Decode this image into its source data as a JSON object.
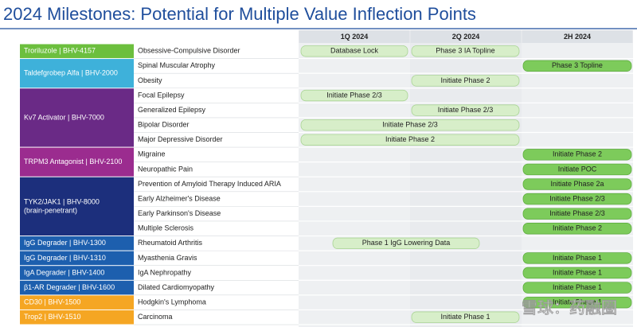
{
  "title": "2024 Milestones: Potential for Multiple Value Inflection Points",
  "columns": [
    "1Q 2024",
    "2Q 2024",
    "2H 2024"
  ],
  "programs": [
    {
      "name": [
        "Troriluzole | BHV-4157"
      ],
      "color": "#6cbf3e",
      "rows": [
        {
          "indication": "Obsessive-Compulsive Disorder",
          "milestones": [
            "Database Lock",
            "Phase 3 IA Topline"
          ]
        }
      ]
    },
    {
      "name": [
        "Taldefgrobep Alfa | BHV-2000"
      ],
      "color": "#3eb1da",
      "rows": [
        {
          "indication": "Spinal Muscular Atrophy",
          "milestones": [
            "Phase 3 Topline"
          ]
        },
        {
          "indication": "Obesity",
          "milestones": [
            "Initiate Phase 2"
          ]
        }
      ]
    },
    {
      "name": [
        "Kv7 Activator | BHV-7000"
      ],
      "color": "#6a2a86",
      "rows": [
        {
          "indication": "Focal Epilepsy",
          "milestones": [
            "Initiate Phase 2/3"
          ]
        },
        {
          "indication": "Generalized Epilepsy",
          "milestones": [
            "Initiate Phase 2/3"
          ]
        },
        {
          "indication": "Bipolar Disorder",
          "milestones": [
            "Initiate Phase 2/3"
          ]
        },
        {
          "indication": "Major Depressive Disorder",
          "milestones": [
            "Initiate Phase 2"
          ]
        }
      ]
    },
    {
      "name": [
        "TRPM3 Antagonist | BHV-2100"
      ],
      "color": "#9b2c8f",
      "rows": [
        {
          "indication": "Migraine",
          "milestones": [
            "Initiate Phase 2"
          ]
        },
        {
          "indication": "Neuropathic Pain",
          "milestones": [
            "Initiate POC"
          ]
        }
      ]
    },
    {
      "name": [
        "TYK2/JAK1 | BHV-8000",
        "(brain-penetrant)"
      ],
      "color": "#1c2f7c",
      "rows": [
        {
          "indication": "Prevention of Amyloid Therapy Induced ARIA",
          "milestones": [
            "Initiate Phase 2a"
          ]
        },
        {
          "indication": "Early Alzheimer's Disease",
          "milestones": [
            "Initiate Phase 2/3"
          ]
        },
        {
          "indication": "Early Parkinson's Disease",
          "milestones": [
            "Initiate Phase 2/3"
          ]
        },
        {
          "indication": "Multiple Sclerosis",
          "milestones": [
            "Initiate Phase 2"
          ]
        }
      ]
    },
    {
      "name": [
        "IgG Degrader | BHV-1300"
      ],
      "color": "#1d5fae",
      "rows": [
        {
          "indication": "Rheumatoid Arthritis",
          "milestones": [
            "Phase 1 IgG Lowering Data"
          ]
        }
      ]
    },
    {
      "name": [
        "IgG Degrader | BHV-1310"
      ],
      "color": "#1d5fae",
      "rows": [
        {
          "indication": "Myasthenia Gravis",
          "milestones": [
            "Initiate Phase 1"
          ]
        }
      ]
    },
    {
      "name": [
        "IgA Degrader | BHV-1400"
      ],
      "color": "#1d5fae",
      "rows": [
        {
          "indication": "IgA Nephropathy",
          "milestones": [
            "Initiate Phase 1"
          ]
        }
      ]
    },
    {
      "name": [
        "β1-AR Degrader | BHV-1600"
      ],
      "color": "#1d5fae",
      "rows": [
        {
          "indication": "Dilated Cardiomyopathy",
          "milestones": [
            "Initiate Phase 1"
          ]
        }
      ]
    },
    {
      "name": [
        "CD30 | BHV-1500"
      ],
      "color": "#f5a623",
      "rows": [
        {
          "indication": "Hodgkin's Lymphoma",
          "milestones": [
            "Initiate Phase 1"
          ]
        }
      ]
    },
    {
      "name": [
        "Trop2 | BHV-1510"
      ],
      "color": "#f5a623",
      "rows": [
        {
          "indication": "Carcinoma",
          "milestones": [
            "Initiate Phase 1"
          ]
        }
      ]
    }
  ],
  "watermark": "雪球：药融圈"
}
